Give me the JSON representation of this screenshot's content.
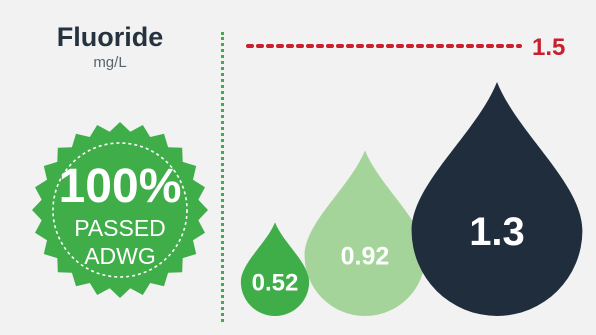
{
  "panel": {
    "title": "Fluoride",
    "unit": "mg/L",
    "badge": {
      "line1": "100%",
      "line2": "PASSED",
      "line3": "ADWG"
    }
  },
  "colors": {
    "background": "#f2f2f2",
    "title": "#26323f",
    "badge_green": "#3fae49",
    "limit_red": "#c8202e",
    "drop_small": "#3fae49",
    "drop_medium": "#a5d49a",
    "drop_large": "#1f2d3d"
  },
  "chart_data": {
    "type": "bar",
    "categories": [
      "",
      "",
      ""
    ],
    "values": [
      0.52,
      0.92,
      1.3
    ],
    "value_labels": [
      "0.52",
      "0.92",
      "1.3"
    ],
    "limit": {
      "value": 1.5,
      "label": "1.5"
    },
    "title": "Fluoride",
    "ylabel": "mg/L",
    "ylim": [
      0,
      1.5
    ]
  }
}
